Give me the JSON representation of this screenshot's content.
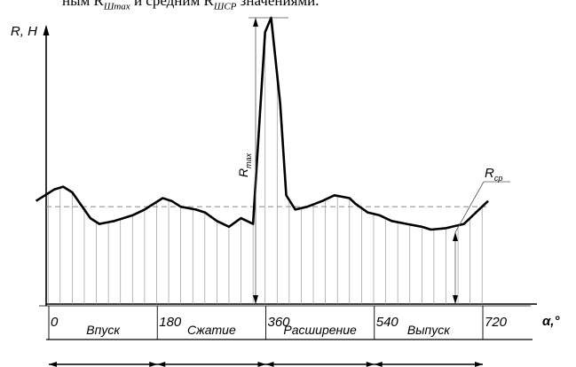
{
  "header": {
    "prefix": "ным R",
    "sub_max": "Шmax",
    "middle": " и средним R",
    "sub_avg": "ШСР",
    "suffix": " значениями."
  },
  "axes": {
    "y_label": "R, H",
    "x_label": "α,°"
  },
  "annotations": {
    "r_max": "R",
    "r_max_sub": "max",
    "r_avg": "R",
    "r_avg_sub": "ср"
  },
  "chart_data": {
    "type": "line",
    "x_ticks": [
      "0",
      "180",
      "360",
      "540",
      "720"
    ],
    "phases": [
      "Впуск",
      "Сжатие",
      "Расширение",
      "Выпуск"
    ],
    "x": [
      -30,
      0,
      15,
      30,
      50,
      60,
      75,
      100,
      130,
      150,
      180,
      195,
      210,
      235,
      250,
      270,
      290,
      310,
      330,
      350,
      360,
      375,
      385,
      400,
      420,
      445,
      465,
      490,
      500,
      520,
      540,
      560,
      585,
      610,
      625,
      650,
      680,
      700,
      720
    ],
    "y": [
      0.36,
      0.4,
      0.41,
      0.39,
      0.33,
      0.3,
      0.28,
      0.29,
      0.31,
      0.33,
      0.37,
      0.36,
      0.34,
      0.33,
      0.32,
      0.29,
      0.27,
      0.3,
      0.28,
      0.95,
      1.0,
      0.7,
      0.38,
      0.33,
      0.34,
      0.36,
      0.38,
      0.37,
      0.35,
      0.32,
      0.31,
      0.29,
      0.28,
      0.27,
      0.26,
      0.265,
      0.28,
      0.32,
      0.36
    ],
    "average": 0.34
  },
  "colors": {
    "line": "#000000",
    "guides": "#777777"
  }
}
